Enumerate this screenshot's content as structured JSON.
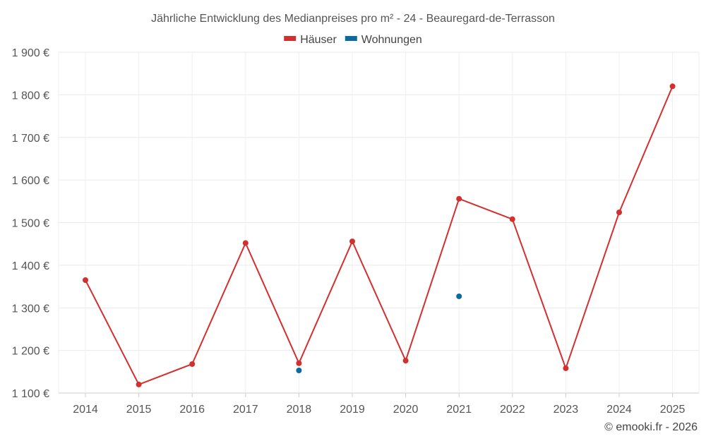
{
  "chart_data": {
    "type": "line",
    "title": "Jährliche Entwicklung des Medianpreises pro m² - 24 - Beauregard-de-Terrasson",
    "categories": [
      "2014",
      "2015",
      "2016",
      "2017",
      "2018",
      "2019",
      "2020",
      "2021",
      "2022",
      "2023",
      "2024",
      "2025"
    ],
    "series": [
      {
        "name": "Häuser",
        "color": "#d32f2f",
        "line": true,
        "values": [
          1365,
          1120,
          1168,
          1452,
          1170,
          1456,
          1176,
          1556,
          1508,
          1158,
          1524,
          1820
        ]
      },
      {
        "name": "Wohnungen",
        "color": "#0a6aa1",
        "line": false,
        "values": [
          null,
          null,
          null,
          null,
          1153,
          null,
          null,
          1327,
          null,
          null,
          null,
          null
        ]
      }
    ],
    "ylim": [
      1100,
      1900
    ],
    "yticks": [
      1100,
      1200,
      1300,
      1400,
      1500,
      1600,
      1700,
      1800,
      1900
    ],
    "ytick_labels": [
      "1 100 €",
      "1 200 €",
      "1 300 €",
      "1 400 €",
      "1 500 €",
      "1 600 €",
      "1 700 €",
      "1 800 €",
      "1 900 €"
    ],
    "grid": true,
    "legend_position": "top-center",
    "xlabel": "",
    "ylabel": ""
  },
  "credit": "© emooki.fr - 2026"
}
